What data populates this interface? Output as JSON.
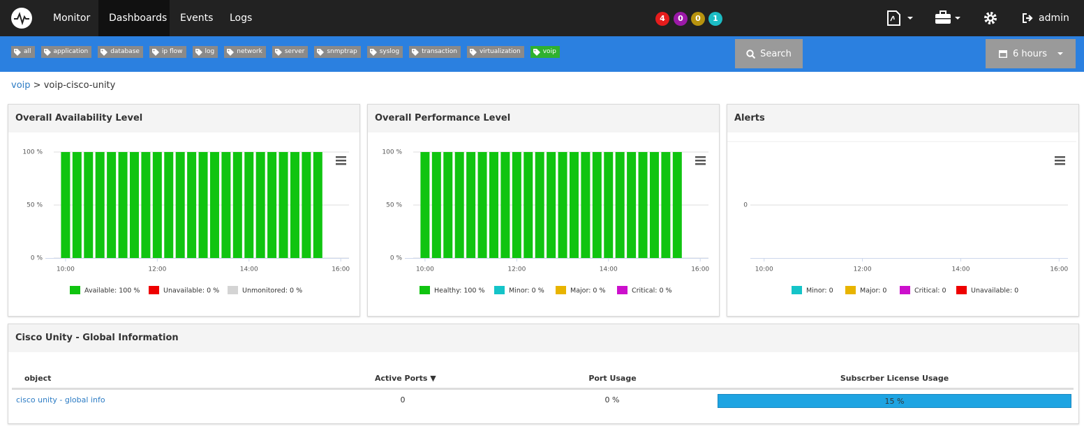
{
  "nav": {
    "items": [
      "Monitor",
      "Dashboards",
      "Events",
      "Logs"
    ],
    "badges": [
      4,
      0,
      0,
      1
    ],
    "user": "admin"
  },
  "tags": [
    "all",
    "application",
    "database",
    "ip flow",
    "log",
    "network",
    "server",
    "snmptrap",
    "syslog",
    "transaction",
    "virtualization",
    "voip"
  ],
  "search": "Search",
  "time_range": "6 hours",
  "breadcrumb": {
    "items": [
      "voip",
      "voip-cisco-unity"
    ],
    "separator": ">"
  },
  "chart_data": [
    {
      "type": "bar",
      "title": "Overall Availability Level",
      "stacked": true,
      "grid": true,
      "x": [
        10,
        10.25,
        10.5,
        10.75,
        11,
        11.25,
        11.5,
        11.75,
        12,
        12.25,
        12.5,
        12.75,
        13,
        13.25,
        13.5,
        13.75,
        14,
        14.25,
        14.5,
        14.75,
        15,
        15.25,
        15.5
      ],
      "xlim": [
        9.56,
        16.18
      ],
      "xticks": [
        {
          "value": 10,
          "label": "10:00"
        },
        {
          "value": 12,
          "label": "12:00"
        },
        {
          "value": 14,
          "label": "14:00"
        },
        {
          "value": 16,
          "label": "16:00"
        }
      ],
      "ylim": [
        0,
        100
      ],
      "yticks": [
        {
          "value": 0,
          "label": "0 %"
        },
        {
          "value": 50,
          "label": "50 %"
        },
        {
          "value": 100,
          "label": "100 %"
        }
      ],
      "series": [
        {
          "name": "Available: 100 %",
          "color": "#10c410",
          "values": [
            100,
            100,
            100,
            100,
            100,
            100,
            100,
            100,
            100,
            100,
            100,
            100,
            100,
            100,
            100,
            100,
            100,
            100,
            100,
            100,
            100,
            100,
            100
          ]
        },
        {
          "name": "Unavailable: 0 %",
          "color": "#ee0000",
          "values": [
            0,
            0,
            0,
            0,
            0,
            0,
            0,
            0,
            0,
            0,
            0,
            0,
            0,
            0,
            0,
            0,
            0,
            0,
            0,
            0,
            0,
            0,
            0
          ]
        },
        {
          "name": "Unmonitored: 0 %",
          "color": "#d4d4d4",
          "values": [
            0,
            0,
            0,
            0,
            0,
            0,
            0,
            0,
            0,
            0,
            0,
            0,
            0,
            0,
            0,
            0,
            0,
            0,
            0,
            0,
            0,
            0,
            0
          ]
        }
      ]
    },
    {
      "type": "bar",
      "title": "Overall Performance Level",
      "stacked": true,
      "grid": true,
      "x": [
        10,
        10.25,
        10.5,
        10.75,
        11,
        11.25,
        11.5,
        11.75,
        12,
        12.25,
        12.5,
        12.75,
        13,
        13.25,
        13.5,
        13.75,
        14,
        14.25,
        14.5,
        14.75,
        15,
        15.25,
        15.5
      ],
      "xlim": [
        9.56,
        16.18
      ],
      "xticks": [
        {
          "value": 10,
          "label": "10:00"
        },
        {
          "value": 12,
          "label": "12:00"
        },
        {
          "value": 14,
          "label": "14:00"
        },
        {
          "value": 16,
          "label": "16:00"
        }
      ],
      "ylim": [
        0,
        100
      ],
      "yticks": [
        {
          "value": 0,
          "label": "0 %"
        },
        {
          "value": 50,
          "label": "50 %"
        },
        {
          "value": 100,
          "label": "100 %"
        }
      ],
      "series": [
        {
          "name": "Healthy: 100 %",
          "color": "#10c410",
          "values": [
            100,
            100,
            100,
            100,
            100,
            100,
            100,
            100,
            100,
            100,
            100,
            100,
            100,
            100,
            100,
            100,
            100,
            100,
            100,
            100,
            100,
            100,
            100
          ]
        },
        {
          "name": "Minor: 0 %",
          "color": "#14c4c8",
          "values": [
            0,
            0,
            0,
            0,
            0,
            0,
            0,
            0,
            0,
            0,
            0,
            0,
            0,
            0,
            0,
            0,
            0,
            0,
            0,
            0,
            0,
            0,
            0
          ]
        },
        {
          "name": "Major: 0 %",
          "color": "#e8b400",
          "values": [
            0,
            0,
            0,
            0,
            0,
            0,
            0,
            0,
            0,
            0,
            0,
            0,
            0,
            0,
            0,
            0,
            0,
            0,
            0,
            0,
            0,
            0,
            0
          ]
        },
        {
          "name": "Critical: 0 %",
          "color": "#cc10cc",
          "values": [
            0,
            0,
            0,
            0,
            0,
            0,
            0,
            0,
            0,
            0,
            0,
            0,
            0,
            0,
            0,
            0,
            0,
            0,
            0,
            0,
            0,
            0,
            0
          ]
        }
      ]
    },
    {
      "type": "bar",
      "title": "Alerts",
      "stacked": true,
      "grid": true,
      "x": [],
      "xlim": [
        9.72,
        16.18
      ],
      "xticks": [
        {
          "value": 10,
          "label": "10:00"
        },
        {
          "value": 12,
          "label": "12:00"
        },
        {
          "value": 14,
          "label": "14:00"
        },
        {
          "value": 16,
          "label": "16:00"
        }
      ],
      "ylim": [
        -1,
        1
      ],
      "yticks": [
        0
      ],
      "series": [
        {
          "name": "Minor: 0",
          "color": "#14c4c8",
          "values": []
        },
        {
          "name": "Major: 0",
          "color": "#e8b400",
          "values": []
        },
        {
          "name": "Critical: 0",
          "color": "#cc10cc",
          "values": []
        },
        {
          "name": "Unavailable: 0",
          "color": "#ee0000",
          "values": []
        }
      ]
    }
  ],
  "table": {
    "title": "Cisco Unity - Global Information",
    "columns": [
      "object",
      "Active Ports",
      "Port Usage",
      "Subscrber License Usage"
    ],
    "sort_indicator": "▼",
    "rows": [
      [
        "cisco unity - global info",
        0,
        "0 %",
        "15 %"
      ]
    ]
  }
}
